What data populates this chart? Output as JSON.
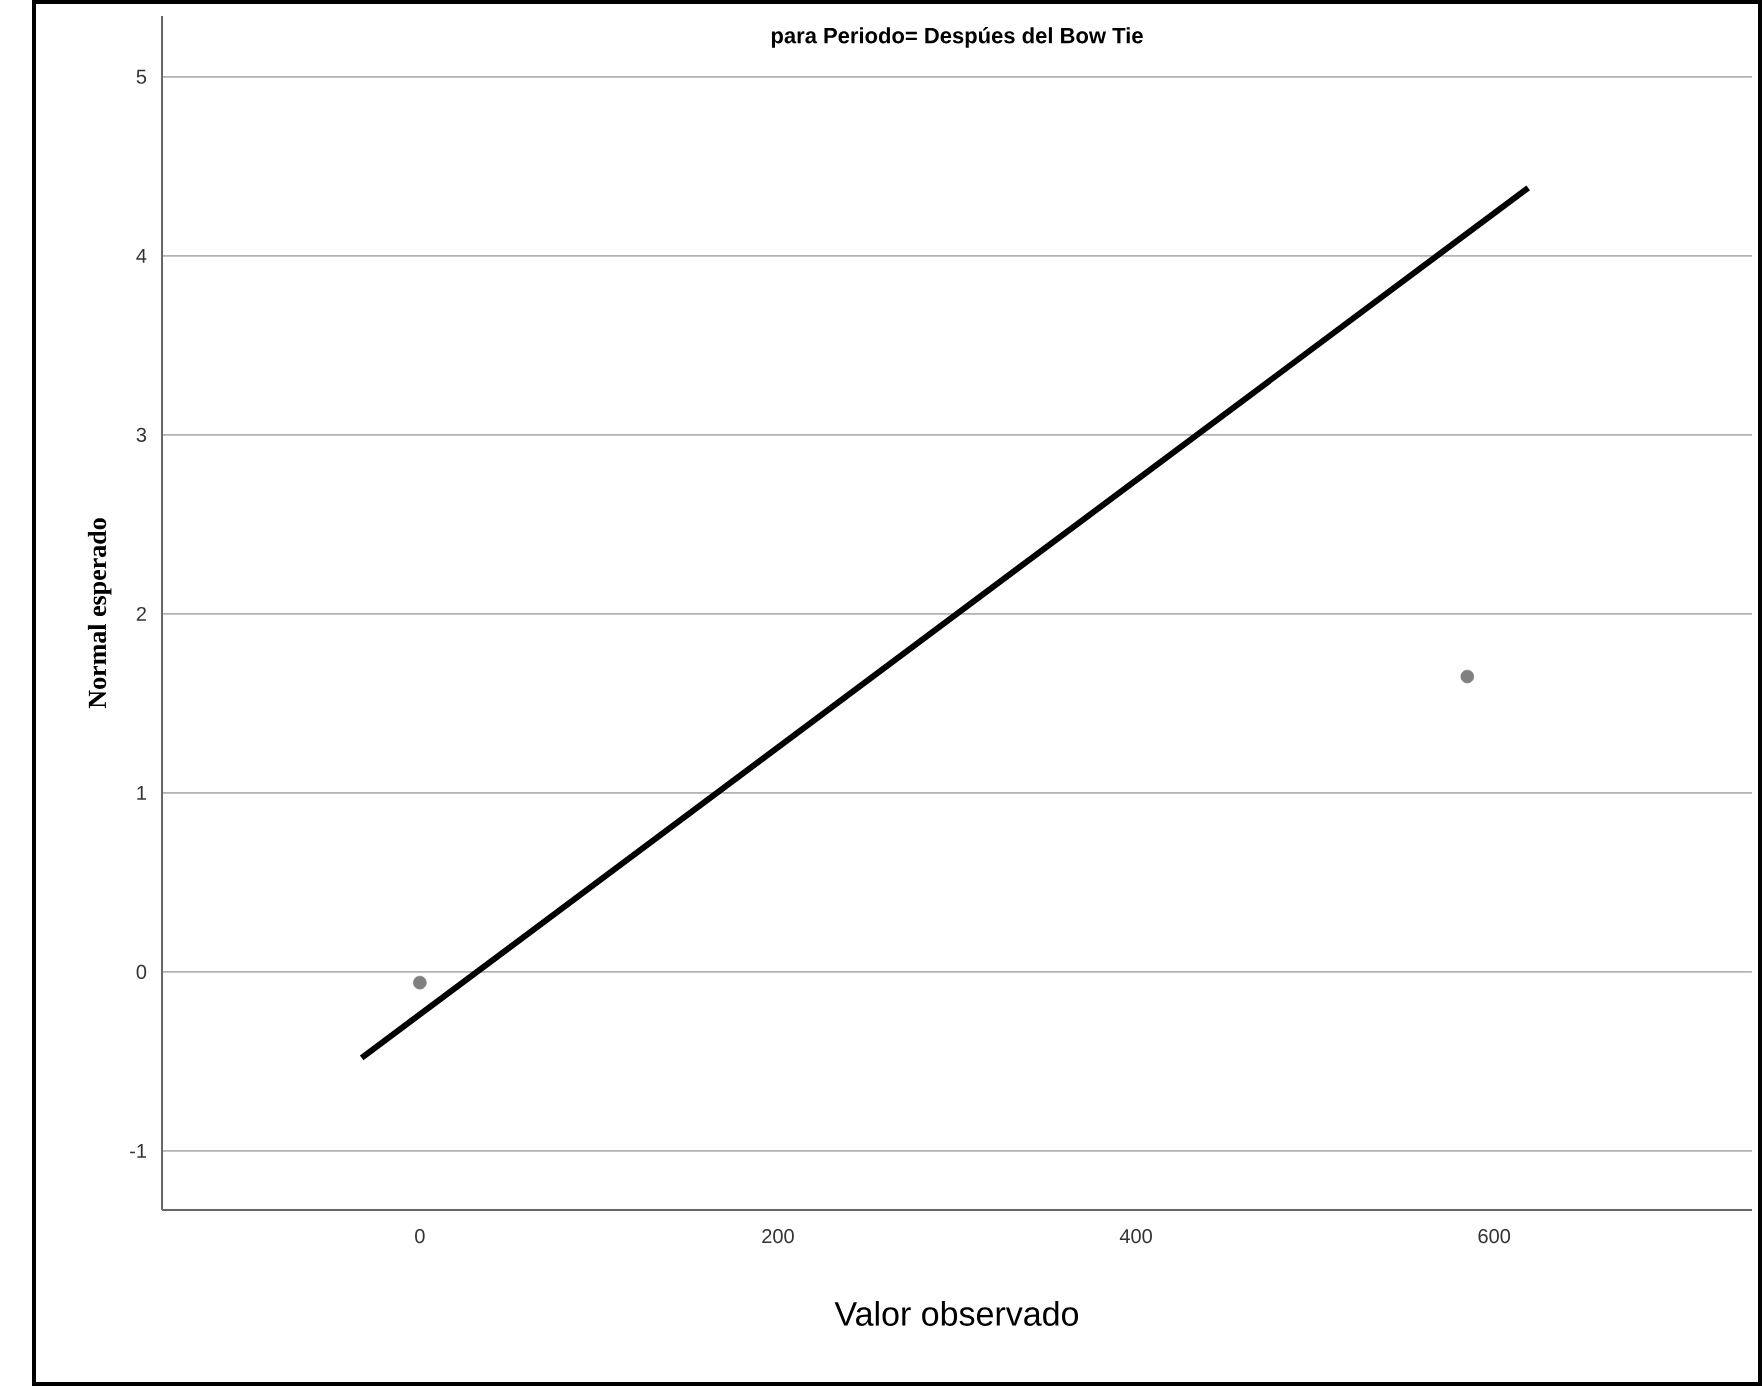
{
  "chart_data": {
    "type": "scatter",
    "title": "para Periodo= Despúes del Bow Tie",
    "xlabel": "Valor observado",
    "ylabel": "Normal esperado",
    "xlim": [
      -144,
      744
    ],
    "ylim": [
      -1.33,
      5.34
    ],
    "xticks": [
      0,
      200,
      400,
      600
    ],
    "yticks": [
      -1,
      0,
      1,
      2,
      3,
      4,
      5
    ],
    "grid": "y",
    "series": [
      {
        "marker": "circle",
        "color": "#808080",
        "x": [
          0,
          585
        ],
        "values": [
          -0.06,
          1.65
        ]
      },
      {
        "type": "line",
        "marker": "none",
        "line_style": "solid",
        "color": "#000000",
        "x": [
          -32.5,
          619
        ],
        "values": [
          -0.48,
          4.38
        ]
      }
    ]
  }
}
